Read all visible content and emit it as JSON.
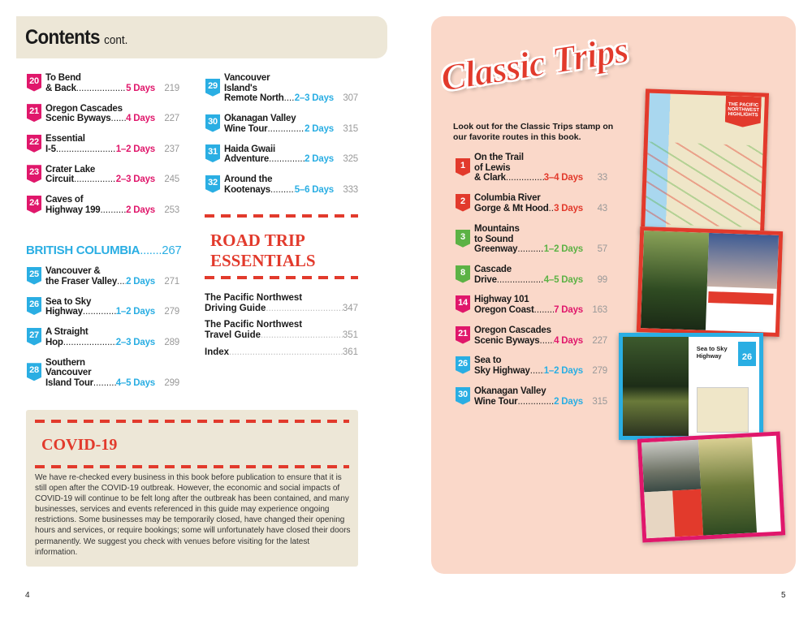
{
  "header": {
    "title": "Contents",
    "subtitle": "cont."
  },
  "colors": {
    "oregon": "#e0176b",
    "bc": "#2aaee3",
    "red": "#e23a2c",
    "green": "#5cb245",
    "beige": "#ede7d7",
    "peach": "#fad8c9"
  },
  "oregon_trips": [
    {
      "num": "20",
      "lines": [
        "To Bend",
        "& Back"
      ],
      "days": "5 Days",
      "page": "219"
    },
    {
      "num": "21",
      "lines": [
        "Oregon Cascades",
        "Scenic Byways"
      ],
      "days": "4 Days",
      "page": "227"
    },
    {
      "num": "22",
      "lines": [
        "Essential",
        "I-5"
      ],
      "days": "1–2 Days",
      "page": "237"
    },
    {
      "num": "23",
      "lines": [
        "Crater Lake",
        "Circuit"
      ],
      "days": "2–3 Days",
      "page": "245"
    },
    {
      "num": "24",
      "lines": [
        "Caves of",
        "Highway 199"
      ],
      "days": "2 Days",
      "page": "253"
    }
  ],
  "british_columbia": {
    "label": "BRITISH COLUMBIA",
    "page": "267"
  },
  "bc_trips": [
    {
      "num": "25",
      "lines": [
        "Vancouver &",
        "the Fraser Valley"
      ],
      "days": "2 Days",
      "page": "271"
    },
    {
      "num": "26",
      "lines": [
        "Sea to Sky",
        "Highway"
      ],
      "days": "1–2 Days",
      "page": "279"
    },
    {
      "num": "27",
      "lines": [
        "A Straight",
        "Hop"
      ],
      "days": "2–3 Days",
      "page": "289"
    },
    {
      "num": "28",
      "lines": [
        "Southern",
        "Vancouver",
        "Island Tour"
      ],
      "days": "4–5 Days",
      "page": "299"
    },
    {
      "num": "29",
      "lines": [
        "Vancouver",
        "Island's",
        "Remote North"
      ],
      "days": "2–3 Days",
      "page": "307"
    },
    {
      "num": "30",
      "lines": [
        "Okanagan Valley",
        "Wine Tour"
      ],
      "days": "2 Days",
      "page": "315"
    },
    {
      "num": "31",
      "lines": [
        "Haida Gwaii",
        "Adventure"
      ],
      "days": "2 Days",
      "page": "325"
    },
    {
      "num": "32",
      "lines": [
        "Around the",
        "Kootenays"
      ],
      "days": "5–6 Days",
      "page": "333"
    }
  ],
  "essentials": {
    "heading_line1": "ROAD TRIP",
    "heading_line2": "ESSENTIALS",
    "items": [
      {
        "lines": [
          "The Pacific Northwest",
          "Driving Guide"
        ],
        "page": "347"
      },
      {
        "lines": [
          "The Pacific Northwest",
          "Travel Guide"
        ],
        "page": "351"
      },
      {
        "lines": [
          "Index"
        ],
        "page": "361"
      }
    ]
  },
  "covid": {
    "heading": "COVID-19",
    "text": "We have re-checked every business in this book before publication to ensure that it is still open after the COVID-19 outbreak. However, the economic and social impacts of COVID-19 will continue to be felt long after the outbreak has been contained, and many businesses, services and events referenced in this guide may experience ongoing restrictions. Some businesses may be temporarily closed, have changed their opening hours and services, or require bookings; some will unfortunately have closed their doors permanently. We suggest you check with venues before visiting for the latest information."
  },
  "classic": {
    "logo": "Classic Trips",
    "intro": "Look out for the Classic Trips stamp on our favorite routes in this book.",
    "trips": [
      {
        "num": "1",
        "lines": [
          "On the Trail",
          "of Lewis",
          "& Clark"
        ],
        "days": "3–4 Days",
        "page": "33",
        "color": "#e23a2c"
      },
      {
        "num": "2",
        "lines": [
          "Columbia River",
          "Gorge & Mt Hood"
        ],
        "days": "3 Days",
        "page": "43",
        "color": "#e23a2c"
      },
      {
        "num": "3",
        "lines": [
          "Mountains",
          "to Sound",
          "Greenway"
        ],
        "days": "1–2 Days",
        "page": "57",
        "color": "#5cb245"
      },
      {
        "num": "8",
        "lines": [
          "Cascade",
          "Drive"
        ],
        "days": "4–5 Days",
        "page": "99",
        "color": "#5cb245"
      },
      {
        "num": "14",
        "lines": [
          "Highway 101",
          "Oregon Coast"
        ],
        "days": "7 Days",
        "page": "163",
        "color": "#e0176b"
      },
      {
        "num": "21",
        "lines": [
          "Oregon Cascades",
          "Scenic Byways"
        ],
        "days": "4 Days",
        "page": "227",
        "color": "#e0176b"
      },
      {
        "num": "26",
        "lines": [
          "Sea to",
          "Sky Highway"
        ],
        "days": "1–2 Days",
        "page": "279",
        "color": "#2aaee3"
      },
      {
        "num": "30",
        "lines": [
          "Okanagan Valley",
          "Wine Tour"
        ],
        "days": "2 Days",
        "page": "315",
        "color": "#2aaee3"
      }
    ],
    "thumbs": {
      "map_title": "THE PACIFIC NORTHWEST HIGHLIGHTS",
      "trip_title": "Sea to Sky Highway",
      "trip_num": "26"
    }
  },
  "page_numbers": {
    "left": "4",
    "right": "5"
  }
}
